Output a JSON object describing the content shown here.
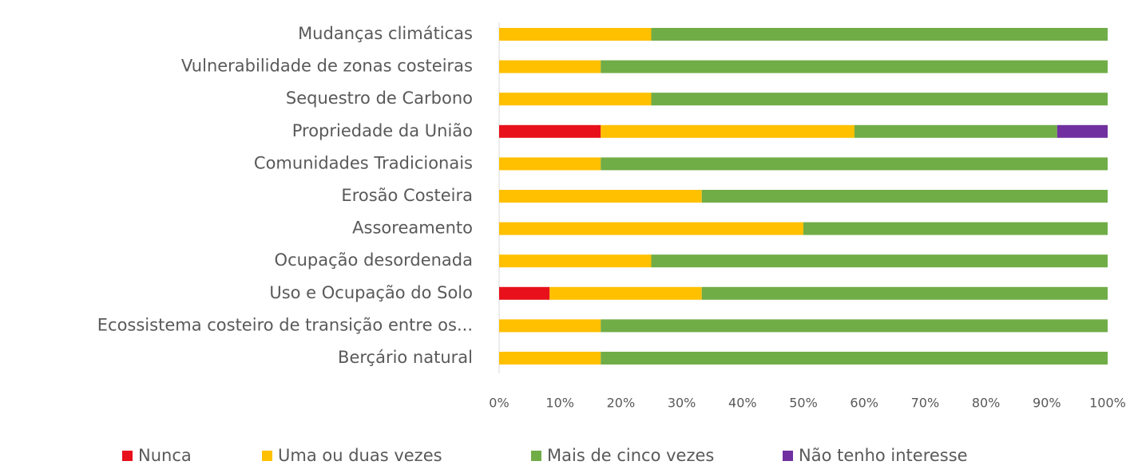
{
  "chart_data": {
    "type": "stacked_bar_horizontal",
    "categories": [
      "Mudanças climáticas",
      "Vulnerabilidade de zonas costeiras",
      "Sequestro de Carbono",
      "Propriedade da União",
      "Comunidades Tradicionais",
      "Erosão Costeira",
      "Assoreamento",
      "Ocupação desordenada",
      "Uso e Ocupação do Solo",
      "Ecossistema costeiro de transição entre os...",
      "Berçário natural"
    ],
    "series": [
      {
        "name": "Nunca",
        "color": "#e8111b",
        "values": [
          0,
          0,
          0,
          16.7,
          0,
          0,
          0,
          0,
          8.3,
          0,
          0
        ]
      },
      {
        "name": "Uma ou duas vezes",
        "color": "#ffc000",
        "values": [
          25,
          16.7,
          25,
          41.7,
          16.7,
          33.3,
          50,
          25,
          25,
          16.7,
          16.7
        ]
      },
      {
        "name": "Mais de cinco vezes",
        "color": "#70ad47",
        "values": [
          75,
          83.3,
          75,
          33.3,
          83.3,
          66.7,
          50,
          75,
          66.7,
          83.3,
          83.3
        ]
      },
      {
        "name": "Não tenho interesse",
        "color": "#7030a0",
        "values": [
          0,
          0,
          0,
          8.3,
          0,
          0,
          0,
          0,
          0,
          0,
          0
        ]
      }
    ],
    "xlim": [
      0,
      100
    ],
    "xticks": [
      {
        "value": 0,
        "label": "0%"
      },
      {
        "value": 10,
        "label": "10%"
      },
      {
        "value": 20,
        "label": "20%"
      },
      {
        "value": 30,
        "label": "30%"
      },
      {
        "value": 40,
        "label": "40%"
      },
      {
        "value": 50,
        "label": "50%"
      },
      {
        "value": 60,
        "label": "60%"
      },
      {
        "value": 70,
        "label": "70%"
      },
      {
        "value": 80,
        "label": "80%"
      },
      {
        "value": 90,
        "label": "90%"
      },
      {
        "value": 100,
        "label": "100%"
      }
    ],
    "legend": "bottom"
  }
}
